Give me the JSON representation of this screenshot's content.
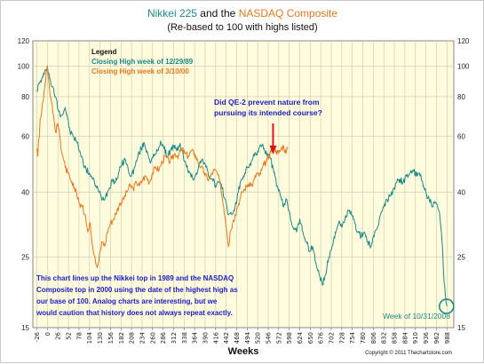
{
  "chart_data": {
    "type": "line",
    "title_parts": [
      "Nikkei 225",
      " and the ",
      "NASDAQ Composite"
    ],
    "subtitle": "(Re-based to 100 with highs listed)",
    "xlabel": "Weeks",
    "ylabel": "",
    "y_scale": "log",
    "ylim": [
      15,
      120
    ],
    "y_ticks": [
      15,
      25,
      40,
      60,
      80,
      100,
      120
    ],
    "xlim": [
      -36,
      1005
    ],
    "x_ticks": [
      -26,
      0,
      26,
      52,
      78,
      104,
      130,
      156,
      182,
      208,
      234,
      260,
      286,
      312,
      338,
      364,
      390,
      416,
      442,
      468,
      494,
      520,
      546,
      572,
      598,
      624,
      650,
      676,
      702,
      728,
      754,
      780,
      806,
      832,
      858,
      884,
      910,
      936,
      962,
      988
    ],
    "legend": {
      "title": "Legend",
      "placement": "top-left",
      "entries": [
        "Closing High week of 12/29/89",
        "Closing High week of 3/10/00"
      ]
    },
    "series": [
      {
        "name": "Closing High week of 12/29/89",
        "color": "#1b8a86",
        "x": [
          -26,
          -20,
          -14,
          -8,
          -4,
          0,
          6,
          12,
          20,
          28,
          36,
          44,
          50,
          56,
          64,
          72,
          80,
          88,
          96,
          104,
          112,
          120,
          128,
          136,
          144,
          152,
          160,
          168,
          176,
          184,
          192,
          200,
          208,
          216,
          224,
          232,
          240,
          248,
          256,
          264,
          272,
          280,
          288,
          296,
          304,
          312,
          320,
          328,
          336,
          344,
          352,
          360,
          368,
          376,
          384,
          392,
          400,
          408,
          416,
          424,
          432,
          440,
          448,
          456,
          464,
          472,
          480,
          488,
          496,
          504,
          512,
          520,
          528,
          536,
          544,
          552,
          560,
          568,
          576,
          584,
          592,
          600,
          608,
          616,
          624,
          632,
          640,
          648,
          656,
          664,
          672,
          680,
          688,
          696,
          704,
          712,
          720,
          728,
          736,
          744,
          752,
          760,
          768,
          776,
          784,
          792,
          800,
          808,
          816,
          824,
          832,
          840,
          848,
          856,
          864,
          872,
          880,
          888,
          896,
          904,
          912,
          920,
          928,
          936,
          944,
          952,
          960,
          968,
          972,
          976,
          980,
          984,
          986,
          988
        ],
        "values": [
          84,
          88,
          91,
          94,
          97,
          100,
          91,
          86,
          80,
          72,
          70,
          74,
          68,
          62,
          60,
          58,
          54,
          50,
          47,
          46,
          44,
          42,
          40,
          38,
          39,
          41,
          44,
          43,
          46,
          49,
          51,
          47,
          45,
          48,
          52,
          55,
          57,
          53,
          50,
          52,
          54,
          58,
          55,
          52,
          54,
          56,
          54,
          57,
          52,
          48,
          46,
          44,
          46,
          49,
          51,
          48,
          45,
          44,
          42,
          43,
          41,
          38,
          34,
          34,
          36,
          40,
          44,
          46,
          48,
          50,
          52,
          54,
          56,
          55,
          53,
          51,
          46,
          42,
          39,
          36,
          38,
          34,
          31,
          30,
          33,
          30,
          28,
          26,
          27,
          24,
          22,
          20.5,
          22,
          25,
          27,
          30,
          32,
          31,
          33,
          35,
          34,
          32,
          30,
          29,
          30,
          28,
          27,
          29,
          31,
          34,
          36,
          38,
          39,
          41,
          43,
          44,
          43,
          45,
          46,
          47,
          45,
          46,
          43,
          40,
          38,
          36,
          37,
          35,
          32,
          28,
          22,
          19,
          18,
          17.5
        ]
      },
      {
        "name": "Closing High week of 3/10/00",
        "color": "#e8781c",
        "x": [
          -26,
          -24,
          -22,
          -20,
          -18,
          -14,
          -10,
          -6,
          -3,
          0,
          4,
          8,
          12,
          16,
          20,
          26,
          32,
          38,
          44,
          50,
          56,
          62,
          70,
          78,
          86,
          94,
          100,
          106,
          112,
          118,
          122,
          126,
          130,
          136,
          142,
          148,
          156,
          164,
          172,
          180,
          188,
          196,
          204,
          212,
          220,
          228,
          236,
          244,
          252,
          260,
          268,
          276,
          284,
          292,
          300,
          308,
          316,
          324,
          332,
          340,
          348,
          356,
          364,
          372,
          380,
          388,
          396,
          404,
          412,
          420,
          428,
          436,
          440,
          444,
          448,
          452,
          458,
          464,
          470,
          476,
          482,
          488,
          494,
          500,
          506,
          512,
          518,
          524,
          530,
          536,
          542,
          548,
          554,
          560,
          566,
          572,
          578,
          584,
          590,
          594
        ],
        "values": [
          55,
          52,
          58,
          60,
          68,
          72,
          78,
          88,
          95,
          100,
          88,
          80,
          75,
          68,
          62,
          66,
          58,
          52,
          48,
          46,
          44,
          42,
          41,
          37,
          36,
          34,
          30,
          32,
          27,
          25,
          23.5,
          24,
          26,
          28,
          27,
          30,
          32,
          33,
          35,
          37,
          38,
          40,
          42,
          41,
          43,
          42,
          44,
          45,
          43,
          46,
          48,
          47,
          50,
          52,
          50,
          51,
          53,
          52,
          55,
          53,
          52,
          54,
          53,
          50,
          48,
          46,
          44,
          45,
          47,
          46,
          42,
          36,
          33,
          30,
          27,
          30,
          32,
          34,
          36,
          38,
          40,
          41,
          42,
          43,
          42,
          44,
          46,
          45,
          47,
          49,
          50,
          52,
          55,
          56,
          54,
          53,
          55,
          56,
          53,
          55
        ]
      }
    ],
    "annotations": {
      "question": [
        "Did QE-2 prevent nature from",
        "pursuing its intended course?"
      ],
      "body": [
        "This chart lines up the Nikkei top in 1989 and the NASDAQ",
        "Composite top in 2000 using the date of the highest high as",
        "our base of 100.  Analog charts are interesting, but we",
        "would caution that history does not always repeat exactly."
      ],
      "week_label": "Week of 10/31/2008",
      "copyright": "Copyright © 2011 Thechartstore.com"
    },
    "arrow_at_week": 558,
    "circle_at": {
      "week": 987,
      "value": 17.5
    },
    "colors": {
      "background": "#fefcdc",
      "grid": "#c9c7b4",
      "nikkei": "#1b8a86",
      "nasdaq": "#e8781c",
      "title": "#1b8a86",
      "nasdaq_title": "#e8781c",
      "annotation": "#1c1ccc",
      "arrow": "#e01515",
      "circle": "#1b8a86",
      "week_label": "#1b8a86"
    },
    "grid": true
  }
}
